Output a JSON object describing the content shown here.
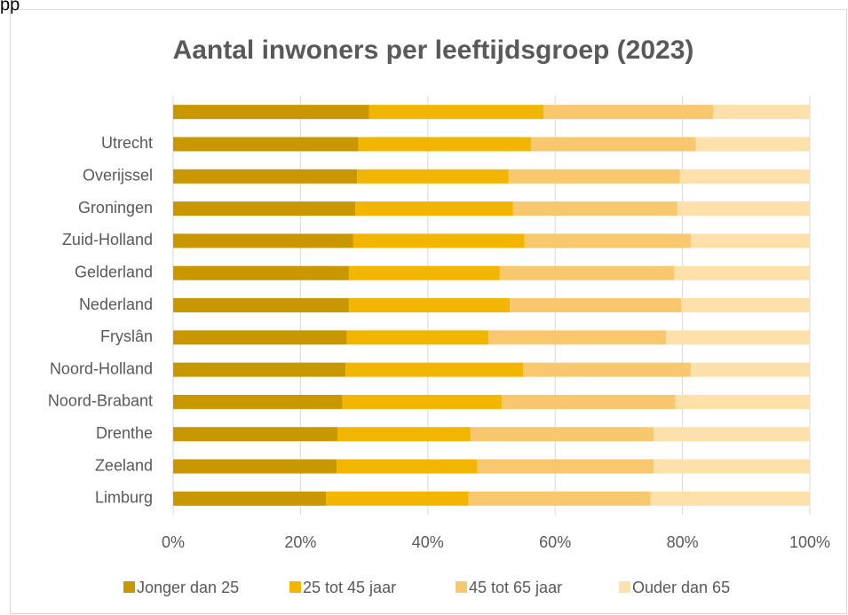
{
  "fragment": "pp",
  "chart_data": {
    "type": "stacked-bar-horizontal",
    "title": "Aantal inwoners per leeftijdsgroep (2023)",
    "categories": [
      null,
      "Utrecht",
      "Overijssel",
      "Groningen",
      "Zuid-Holland",
      "Gelderland",
      "Nederland",
      "Fryslân",
      "Noord-Holland",
      "Noord-Brabant",
      "Drenthe",
      "Zeeland",
      "Limburg"
    ],
    "series": [
      {
        "name": "Jonger dan 25",
        "color": "#c99700",
        "values": [
          30.8,
          29.1,
          28.9,
          28.6,
          28.3,
          27.6,
          27.6,
          27.3,
          27.1,
          26.6,
          25.8,
          25.7,
          24.0
        ]
      },
      {
        "name": "25 tot 45 jaar",
        "color": "#f2b600",
        "values": [
          27.4,
          27.1,
          23.8,
          24.8,
          26.9,
          23.7,
          25.3,
          22.2,
          27.9,
          25.0,
          20.9,
          22.0,
          22.4
        ]
      },
      {
        "name": "45 tot 65 jaar",
        "color": "#f9c76e",
        "values": [
          26.6,
          25.9,
          26.9,
          25.8,
          26.1,
          27.4,
          26.9,
          27.9,
          26.3,
          27.3,
          28.8,
          27.8,
          28.6
        ]
      },
      {
        "name": "Ouder dan 65",
        "color": "#fde0aa",
        "values": [
          15.2,
          17.9,
          20.4,
          20.8,
          18.7,
          21.3,
          20.2,
          22.6,
          18.7,
          21.1,
          24.5,
          24.5,
          25.0
        ]
      }
    ],
    "xlim": [
      0,
      100
    ],
    "xticks": [
      {
        "value": 0,
        "label": "0%"
      },
      {
        "value": 20,
        "label": "20%"
      },
      {
        "value": 40,
        "label": "40%"
      },
      {
        "value": 60,
        "label": "60%"
      },
      {
        "value": 80,
        "label": "80%"
      },
      {
        "value": 100,
        "label": "100%"
      }
    ],
    "grid": true,
    "legend": "bottom"
  }
}
